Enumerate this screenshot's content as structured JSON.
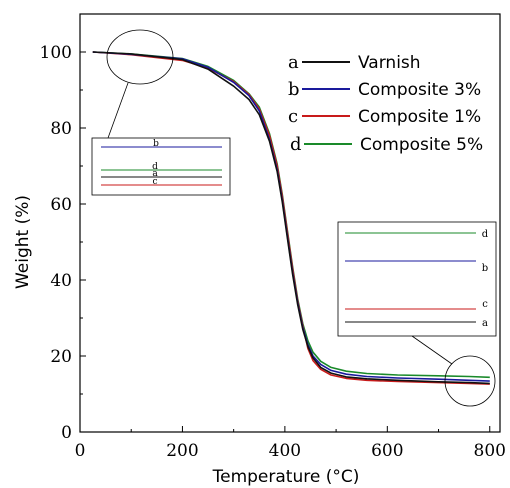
{
  "chart_data": {
    "type": "line",
    "xlabel": "Temperature (°C)",
    "ylabel": "Weight (%)",
    "xlim": [
      0,
      820
    ],
    "ylim": [
      0,
      110
    ],
    "x_ticks": [
      0,
      200,
      400,
      600,
      800
    ],
    "y_ticks": [
      0,
      20,
      40,
      60,
      80,
      100
    ],
    "grid": false,
    "legend_position": "top-right",
    "series": [
      {
        "letter": "a",
        "name": "Varnish",
        "color": "#111111",
        "x": [
          25,
          100,
          200,
          250,
          300,
          330,
          350,
          370,
          385,
          395,
          405,
          415,
          425,
          435,
          445,
          455,
          470,
          490,
          520,
          560,
          620,
          700,
          760,
          800
        ],
        "y": [
          100,
          99.5,
          98.0,
          95.5,
          91.0,
          87.5,
          83.5,
          76.5,
          68.5,
          60.5,
          51.0,
          41.5,
          33.5,
          27.0,
          22.5,
          19.5,
          17.0,
          15.5,
          14.5,
          14.0,
          13.6,
          13.2,
          13.0,
          12.8
        ]
      },
      {
        "letter": "b",
        "name": "Composite 3%",
        "color": "#1a1a9c",
        "x": [
          25,
          100,
          200,
          250,
          300,
          330,
          350,
          370,
          385,
          395,
          405,
          415,
          425,
          435,
          445,
          455,
          470,
          490,
          520,
          560,
          620,
          700,
          760,
          800
        ],
        "y": [
          100,
          99.4,
          98.2,
          96.0,
          92.0,
          88.5,
          84.5,
          77.0,
          69.0,
          61.0,
          51.5,
          42.0,
          34.0,
          27.5,
          23.0,
          20.0,
          17.8,
          16.2,
          15.2,
          14.6,
          14.2,
          13.9,
          13.6,
          13.4
        ]
      },
      {
        "letter": "c",
        "name": "Composite 1%",
        "color": "#c81a1a",
        "x": [
          25,
          100,
          200,
          250,
          300,
          330,
          350,
          370,
          385,
          395,
          405,
          415,
          425,
          435,
          445,
          455,
          470,
          490,
          520,
          560,
          620,
          700,
          760,
          800
        ],
        "y": [
          100,
          99.3,
          97.8,
          95.8,
          92.2,
          88.8,
          85.0,
          78.0,
          70.0,
          62.0,
          52.5,
          43.0,
          34.5,
          28.0,
          22.0,
          18.8,
          16.5,
          15.0,
          14.1,
          13.6,
          13.3,
          13.0,
          12.8,
          12.6
        ]
      },
      {
        "letter": "d",
        "name": "Composite 5%",
        "color": "#1a8a2a",
        "x": [
          25,
          100,
          200,
          250,
          300,
          330,
          350,
          370,
          385,
          395,
          405,
          415,
          425,
          435,
          445,
          455,
          470,
          490,
          520,
          560,
          620,
          700,
          760,
          800
        ],
        "y": [
          100,
          99.5,
          98.3,
          96.2,
          92.5,
          89.0,
          85.5,
          78.5,
          70.5,
          62.5,
          53.0,
          43.5,
          35.0,
          28.5,
          24.0,
          21.0,
          18.6,
          17.0,
          16.0,
          15.4,
          15.0,
          14.8,
          14.6,
          14.4
        ]
      }
    ],
    "inset_start_order": [
      "b",
      "d",
      "a",
      "c"
    ],
    "inset_end_order": [
      "d",
      "b",
      "c",
      "a"
    ]
  }
}
